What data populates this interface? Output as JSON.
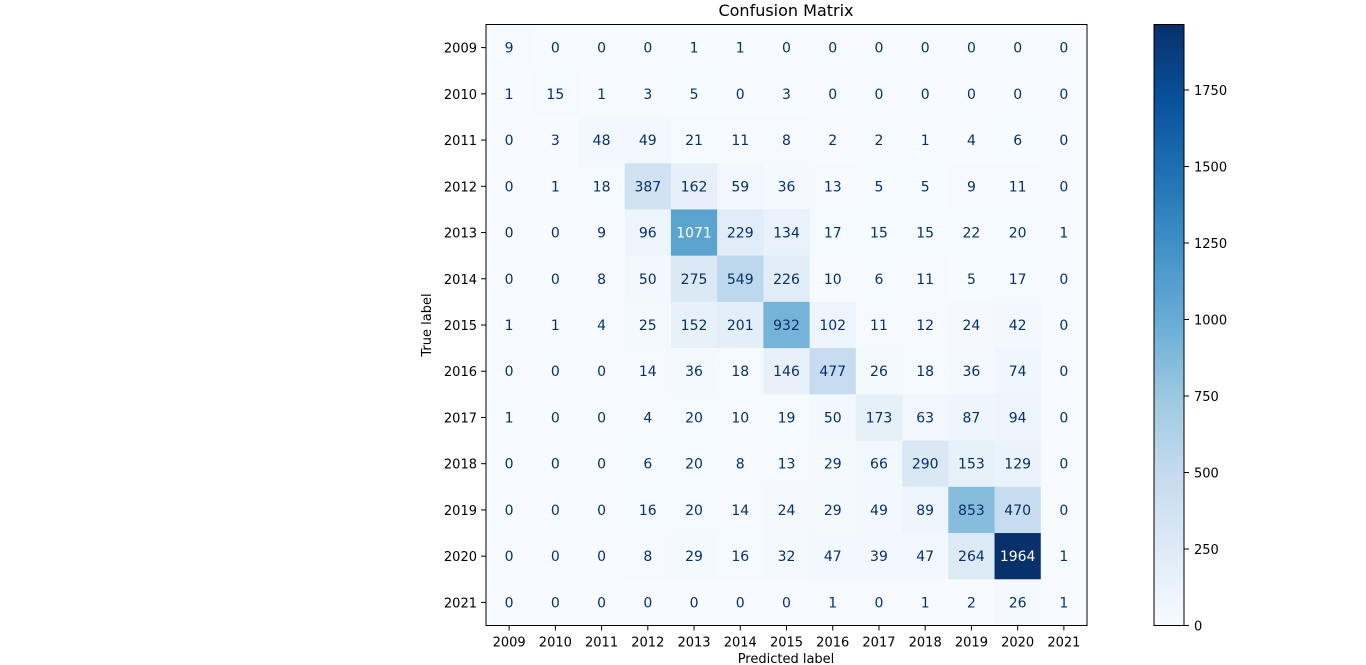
{
  "chart_data": {
    "type": "heatmap",
    "title": "Confusion Matrix",
    "xlabel": "Predicted label",
    "ylabel": "True label",
    "x_labels": [
      "2009",
      "2010",
      "2011",
      "2012",
      "2013",
      "2014",
      "2015",
      "2016",
      "2017",
      "2018",
      "2019",
      "2020",
      "2021"
    ],
    "y_labels": [
      "2009",
      "2010",
      "2011",
      "2012",
      "2013",
      "2014",
      "2015",
      "2016",
      "2017",
      "2018",
      "2019",
      "2020",
      "2021"
    ],
    "matrix": [
      [
        9,
        0,
        0,
        0,
        1,
        1,
        0,
        0,
        0,
        0,
        0,
        0,
        0
      ],
      [
        1,
        15,
        1,
        3,
        5,
        0,
        3,
        0,
        0,
        0,
        0,
        0,
        0
      ],
      [
        0,
        3,
        48,
        49,
        21,
        11,
        8,
        2,
        2,
        1,
        4,
        6,
        0
      ],
      [
        0,
        1,
        18,
        387,
        162,
        59,
        36,
        13,
        5,
        5,
        9,
        11,
        0
      ],
      [
        0,
        0,
        9,
        96,
        1071,
        229,
        134,
        17,
        15,
        15,
        22,
        20,
        1
      ],
      [
        0,
        0,
        8,
        50,
        275,
        549,
        226,
        10,
        6,
        11,
        5,
        17,
        0
      ],
      [
        1,
        1,
        4,
        25,
        152,
        201,
        932,
        102,
        11,
        12,
        24,
        42,
        0
      ],
      [
        0,
        0,
        0,
        14,
        36,
        18,
        146,
        477,
        26,
        18,
        36,
        74,
        0
      ],
      [
        1,
        0,
        0,
        4,
        20,
        10,
        19,
        50,
        173,
        63,
        87,
        94,
        0
      ],
      [
        0,
        0,
        0,
        6,
        20,
        8,
        13,
        29,
        66,
        290,
        153,
        129,
        0
      ],
      [
        0,
        0,
        0,
        16,
        20,
        14,
        24,
        29,
        49,
        89,
        853,
        470,
        0
      ],
      [
        0,
        0,
        0,
        8,
        29,
        16,
        32,
        47,
        39,
        47,
        264,
        1964,
        1
      ],
      [
        0,
        0,
        0,
        0,
        0,
        0,
        0,
        1,
        0,
        1,
        2,
        26,
        1
      ]
    ],
    "colorbar": {
      "min": 0,
      "max": 1964,
      "ticks": [
        0,
        250,
        500,
        750,
        1000,
        1250,
        1500,
        1750
      ],
      "colormap": "Blues"
    },
    "annotation_colors": {
      "light_cells": "#08306b",
      "dark_cells": "#ffffff"
    }
  }
}
